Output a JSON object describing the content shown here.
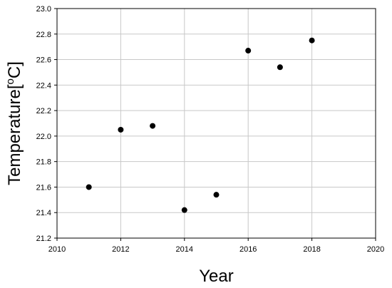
{
  "chart_data": {
    "type": "scatter",
    "title": "",
    "xlabel": "Year",
    "ylabel_main": "Temperature[",
    "ylabel_sup": "o",
    "ylabel_end": "C]",
    "xlim": [
      2010,
      2020
    ],
    "ylim": [
      21.2,
      23.0
    ],
    "x_ticks": [
      "2010",
      "2012",
      "2014",
      "2016",
      "2018",
      "2020"
    ],
    "y_ticks": [
      "21.2",
      "21.4",
      "21.6",
      "21.8",
      "22.0",
      "22.2",
      "22.4",
      "22.6",
      "22.8",
      "23.0"
    ],
    "grid": true,
    "marker_color": "#000000",
    "grid_color": "#c8c8c8",
    "points": [
      {
        "x": 2011,
        "y": 21.6
      },
      {
        "x": 2012,
        "y": 22.05
      },
      {
        "x": 2013,
        "y": 22.08
      },
      {
        "x": 2014,
        "y": 21.42
      },
      {
        "x": 2015,
        "y": 21.54
      },
      {
        "x": 2016,
        "y": 22.67
      },
      {
        "x": 2017,
        "y": 22.54
      },
      {
        "x": 2018,
        "y": 22.75
      }
    ]
  }
}
